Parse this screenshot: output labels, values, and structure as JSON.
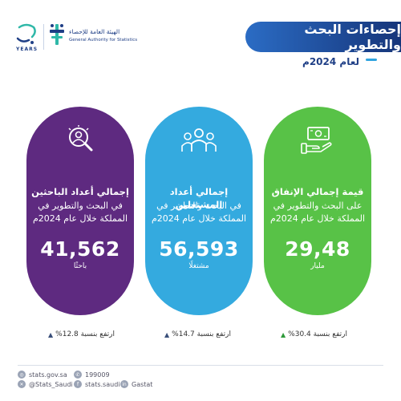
{
  "header": {
    "title": "إحصاءات البحث والتطوير",
    "subtitle": "لعام 2024م"
  },
  "logos": {
    "anniversary_years": "YEARS",
    "gastat_arabic": "الهيئة العامة للإحصاء",
    "gastat_english": "General Authority for Statistics"
  },
  "cards": [
    {
      "heading": "إجمالي أعداد الباحثين",
      "description": "في البحث والتطوير في المملكة خلال عام 2024م",
      "value": "41,562",
      "unit": "باحثًا",
      "icon": "researcher-magnifier-icon",
      "color": "#5e2a80",
      "growth": "ارتفع بنسبة 12.8%"
    },
    {
      "heading": "إجمالي أعداد المشتغلين",
      "description": "في البحث والتطوير في المملكة خلال عام 2024م",
      "value": "56,593",
      "unit": "مشتغلًا",
      "icon": "people-group-icon",
      "color": "#34aadf",
      "growth": "ارتفع بنسبة 14.7%"
    },
    {
      "heading": "قيمة إجمالي الإنفاق",
      "description": "على البحث والتطوير في المملكة خلال عام 2024م",
      "value": "29,48",
      "unit": "مليار",
      "icon": "money-hand-icon",
      "color": "#58c247",
      "growth": "ارتفع بنسبة 30.4%"
    }
  ],
  "footer": {
    "website": "stats.gov.sa",
    "phone": "199009",
    "twitter": "@Stats_Saudi",
    "social": "stats.saudi",
    "gastat": "Gastat"
  }
}
